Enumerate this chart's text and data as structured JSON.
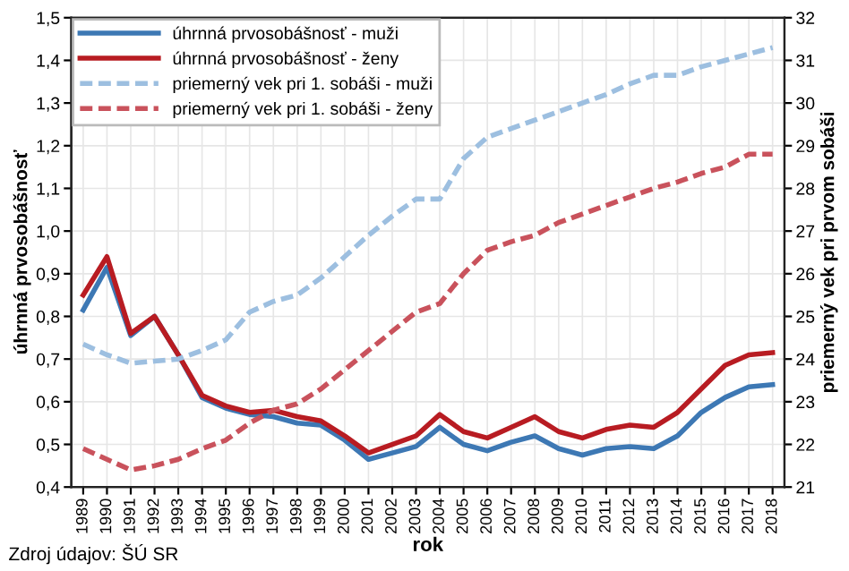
{
  "chart_data": {
    "type": "line",
    "categories": [
      "1989",
      "1990",
      "1991",
      "1992",
      "1993",
      "1994",
      "1995",
      "1996",
      "1997",
      "1998",
      "1999",
      "2000",
      "2001",
      "2002",
      "2003",
      "2004",
      "2005",
      "2006",
      "2007",
      "2008",
      "2009",
      "2010",
      "2011",
      "2012",
      "2013",
      "2014",
      "2015",
      "2016",
      "2017",
      "2018"
    ],
    "series": [
      {
        "name": "úhrnná prvosobášnosť - muži",
        "color": "#3d78b4",
        "line_style": "solid",
        "values": [
          0.815,
          0.915,
          0.755,
          0.8,
          0.71,
          0.61,
          0.585,
          0.57,
          0.565,
          0.55,
          0.545,
          0.51,
          0.465,
          0.48,
          0.495,
          0.54,
          0.5,
          0.485,
          0.505,
          0.52,
          0.49,
          0.475,
          0.49,
          0.495,
          0.49,
          0.52,
          0.575,
          0.61,
          0.635,
          0.64
        ]
      },
      {
        "name": "úhrnná prvosobášnosť - ženy",
        "color": "#b81c22",
        "line_style": "solid",
        "values": [
          0.85,
          0.94,
          0.76,
          0.8,
          0.71,
          0.615,
          0.59,
          0.575,
          0.58,
          0.565,
          0.555,
          0.52,
          0.48,
          0.5,
          0.52,
          0.57,
          0.53,
          0.515,
          0.54,
          0.565,
          0.53,
          0.515,
          0.535,
          0.545,
          0.54,
          0.575,
          0.63,
          0.685,
          0.71,
          0.715
        ]
      },
      {
        "name": "priemerný vek pri 1. sobáši - muži",
        "color": "#9dbfe0",
        "line_style": "dashed",
        "axis": "y2",
        "values": [
          24.35,
          24.1,
          23.9,
          23.95,
          24.0,
          24.2,
          24.45,
          25.1,
          25.35,
          25.5,
          25.9,
          26.4,
          26.9,
          27.35,
          27.75,
          27.75,
          28.7,
          29.2,
          29.4,
          29.6,
          29.8,
          30.0,
          30.2,
          30.45,
          30.65,
          30.65,
          30.85,
          31.0,
          31.15,
          31.3
        ]
      },
      {
        "name": "priemerný vek pri 1. sobáši - ženy",
        "color": "#c9525c",
        "line_style": "dashed",
        "axis": "y2",
        "values": [
          21.9,
          21.65,
          21.4,
          21.5,
          21.65,
          21.9,
          22.1,
          22.5,
          22.8,
          22.95,
          23.3,
          23.75,
          24.2,
          24.65,
          25.1,
          25.3,
          26.0,
          26.55,
          26.75,
          26.9,
          27.2,
          27.4,
          27.6,
          27.8,
          28.0,
          28.15,
          28.35,
          28.5,
          28.8,
          28.8
        ]
      }
    ],
    "xlabel": "rok",
    "ylabel": "úhrnná prvosobášnosť",
    "y2label": "priemerný vek pri prvom sobáši",
    "ylim": [
      0.4,
      1.5
    ],
    "yticks": [
      {
        "value": 0.4,
        "label": "0,4"
      },
      {
        "value": 0.5,
        "label": "0,5"
      },
      {
        "value": 0.6,
        "label": "0,6"
      },
      {
        "value": 0.7,
        "label": "0,7"
      },
      {
        "value": 0.8,
        "label": "0,8"
      },
      {
        "value": 0.9,
        "label": "0,9"
      },
      {
        "value": 1.0,
        "label": "1,0"
      },
      {
        "value": 1.1,
        "label": "1,1"
      },
      {
        "value": 1.2,
        "label": "1,2"
      },
      {
        "value": 1.3,
        "label": "1,3"
      },
      {
        "value": 1.4,
        "label": "1,4"
      },
      {
        "value": 1.5,
        "label": "1,5"
      }
    ],
    "y2lim": [
      21,
      32
    ],
    "y2ticks": [
      21,
      22,
      23,
      24,
      25,
      26,
      27,
      28,
      29,
      30,
      31,
      32
    ],
    "grid": true,
    "legend": "top left",
    "marker": "none",
    "annotations": [
      "Zdroj údajov: ŠÚ SR"
    ]
  }
}
